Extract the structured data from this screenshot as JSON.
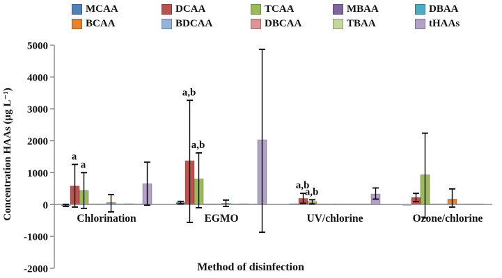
{
  "chart_data": {
    "type": "bar",
    "title": "",
    "xlabel": "Method of disinfection",
    "ylabel": "Concentration HAAs (µg L⁻¹)",
    "ylim": [
      -2000,
      5000
    ],
    "ytick_step": 1000,
    "ytick_labels": [
      "5000",
      "4000",
      "3000",
      "2000",
      "1000",
      "0",
      "-1000",
      "-2000"
    ],
    "grid": false,
    "legend_position": "top",
    "axis_color": "#7f7f7f",
    "baseline_color": "#9a9a9a",
    "error_bar_color": "#000000",
    "categories": [
      "Chlorination",
      "EGMO",
      "UV/chlorine",
      "Ozone/chlorine"
    ],
    "series": [
      {
        "name": "MCAA",
        "color": "#4F81BD",
        "values": [
          -30,
          60,
          25,
          -15
        ],
        "errors": [
          [
            -60,
            5
          ],
          [
            20,
            100
          ],
          null,
          null
        ]
      },
      {
        "name": "DCAA",
        "color": "#C0504D",
        "values": [
          580,
          1370,
          190,
          220
        ],
        "errors": [
          [
            -80,
            1260
          ],
          [
            -560,
            3270
          ],
          [
            40,
            350
          ],
          [
            90,
            350
          ]
        ]
      },
      {
        "name": "TCAA",
        "color": "#9BBB59",
        "values": [
          440,
          800,
          90,
          930
        ],
        "errors": [
          [
            -120,
            1000
          ],
          [
            -100,
            1620
          ],
          [
            20,
            150
          ],
          [
            -420,
            2240
          ]
        ]
      },
      {
        "name": "MBAA",
        "color": "#8064A2",
        "values": [
          15,
          20,
          10,
          15
        ],
        "errors": [
          null,
          null,
          null,
          null
        ]
      },
      {
        "name": "DBAA",
        "color": "#4BACC6",
        "values": [
          20,
          20,
          20,
          20
        ],
        "errors": [
          null,
          null,
          null,
          null
        ]
      },
      {
        "name": "BCAA",
        "color": "#E8822D",
        "values": [
          60,
          40,
          20,
          170
        ],
        "errors": [
          [
            -230,
            310
          ],
          [
            -60,
            140
          ],
          null,
          [
            -80,
            490
          ]
        ]
      },
      {
        "name": "BDCAA",
        "color": "#95B3D7",
        "values": [
          20,
          20,
          10,
          15
        ],
        "errors": [
          null,
          null,
          null,
          null
        ]
      },
      {
        "name": "DBCAA",
        "color": "#D99694",
        "values": [
          25,
          25,
          15,
          20
        ],
        "errors": [
          null,
          null,
          null,
          null
        ]
      },
      {
        "name": "TBAA",
        "color": "#C3D69B",
        "values": [
          15,
          15,
          10,
          15
        ],
        "errors": [
          null,
          null,
          null,
          null
        ]
      },
      {
        "name": "tHAAs",
        "color": "#B3A2C7",
        "values": [
          650,
          2030,
          330,
          0
        ],
        "errors": [
          [
            -20,
            1330
          ],
          [
            -870,
            4870
          ],
          [
            170,
            520
          ],
          null
        ]
      }
    ],
    "annotations": [
      {
        "category_index": 0,
        "series": "DCAA",
        "text": "a"
      },
      {
        "category_index": 0,
        "series": "TCAA",
        "text": "a"
      },
      {
        "category_index": 1,
        "series": "DCAA",
        "text": "a,b"
      },
      {
        "category_index": 1,
        "series": "TCAA",
        "text": "a,b"
      },
      {
        "category_index": 2,
        "series": "DCAA",
        "text": "a,b"
      },
      {
        "category_index": 2,
        "series": "TCAA",
        "text": "a,b"
      }
    ]
  }
}
